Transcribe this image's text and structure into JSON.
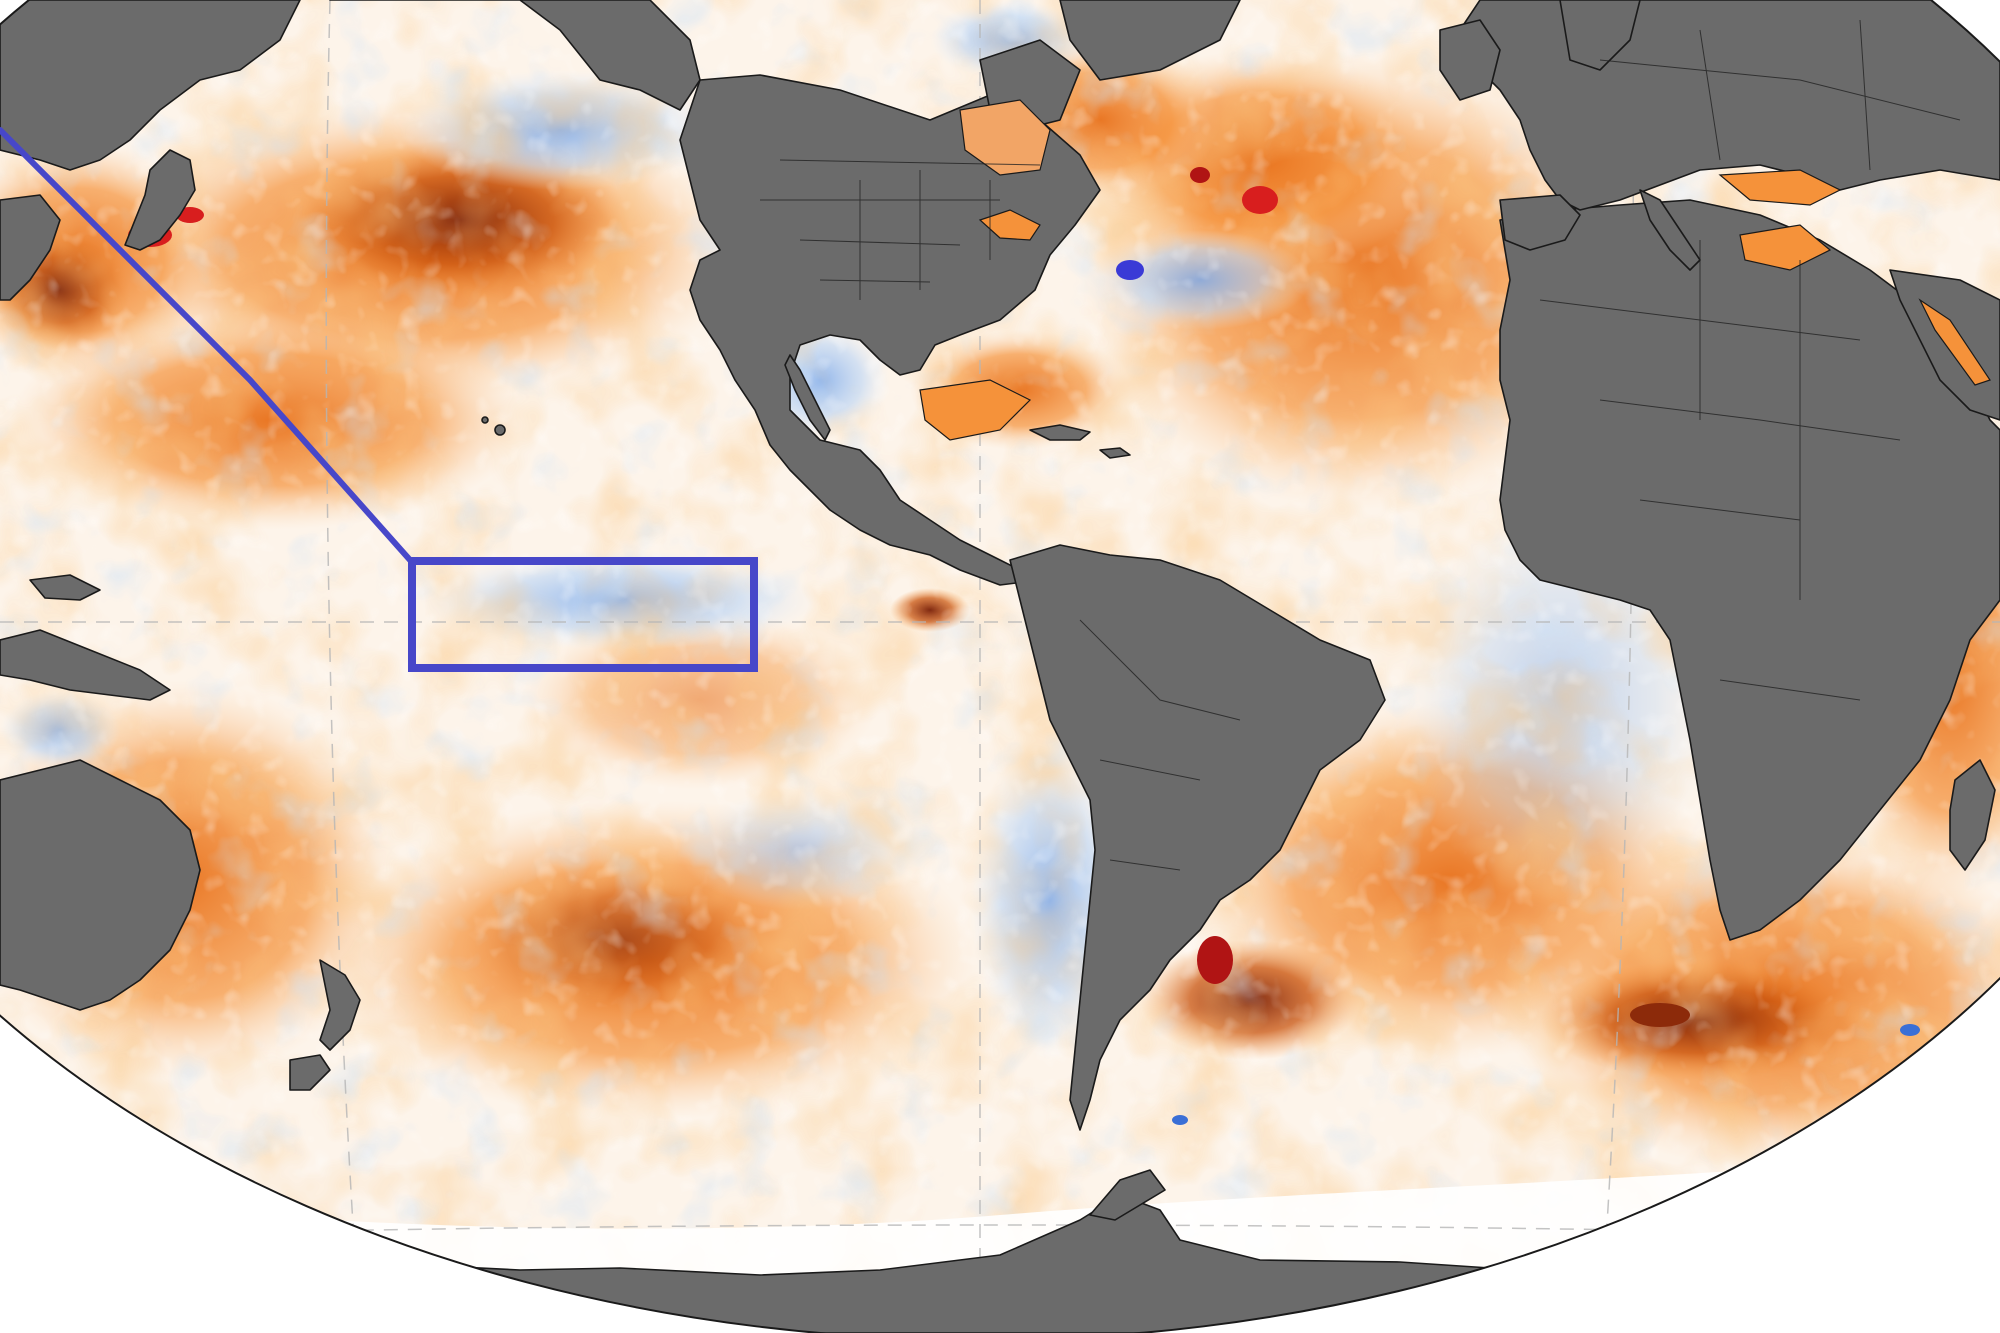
{
  "map": {
    "projection": "robinson",
    "central_meridian_label": "",
    "colors": {
      "land": "#6b6b6b",
      "land_outline": "#1a1a1a",
      "ocean_neutral": "#ffffff",
      "anomaly_warm_light": "#fbd3a8",
      "anomaly_warm": "#f5923a",
      "anomaly_warm_strong": "#d9600f",
      "anomaly_hot": "#8c2a0a",
      "anomaly_extreme": "#d81e1e",
      "anomaly_cool_light": "#d6e7fb",
      "anomaly_cool": "#9cc1f0",
      "anomaly_cold": "#3a6fd6",
      "highlight_box": "#4747c9",
      "graticule": "#b5b5b5"
    },
    "highlight_region": {
      "description_visible": false
    }
  }
}
